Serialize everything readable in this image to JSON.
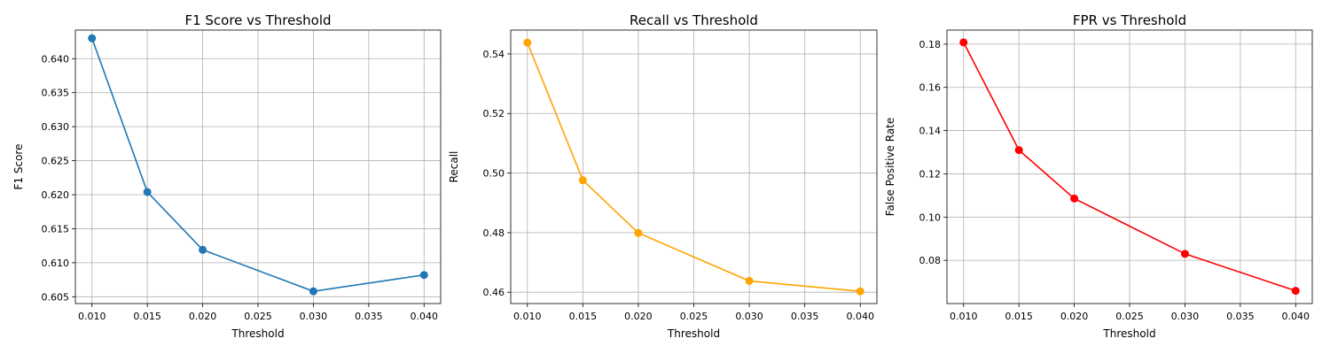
{
  "chart_data": [
    {
      "type": "line",
      "title": "F1 Score vs Threshold",
      "xlabel": "Threshold",
      "ylabel": "F1 Score",
      "grid": true,
      "xlim": [
        0.0085,
        0.0415
      ],
      "ylim": [
        0.604,
        0.6442
      ],
      "xticks": [
        "0.010",
        "0.015",
        "0.020",
        "0.025",
        "0.030",
        "0.035",
        "0.040"
      ],
      "yticks": [
        "0.605",
        "0.610",
        "0.615",
        "0.620",
        "0.625",
        "0.630",
        "0.635",
        "0.640"
      ],
      "color": "#1f77b4",
      "x": [
        0.01,
        0.015,
        0.02,
        0.03,
        0.04
      ],
      "y": [
        0.643,
        0.6204,
        0.6119,
        0.6058,
        0.6082
      ]
    },
    {
      "type": "line",
      "title": "Recall vs Threshold",
      "xlabel": "Threshold",
      "ylabel": "Recall",
      "grid": true,
      "xlim": [
        0.0085,
        0.0415
      ],
      "ylim": [
        0.4562,
        0.548
      ],
      "xticks": [
        "0.010",
        "0.015",
        "0.020",
        "0.025",
        "0.030",
        "0.035",
        "0.040"
      ],
      "yticks": [
        "0.46",
        "0.48",
        "0.50",
        "0.52",
        "0.54"
      ],
      "color": "#ffa500",
      "x": [
        0.01,
        0.015,
        0.02,
        0.03,
        0.04
      ],
      "y": [
        0.5438,
        0.4976,
        0.4799,
        0.4638,
        0.4603
      ]
    },
    {
      "type": "line",
      "title": "FPR vs Threshold",
      "xlabel": "Threshold",
      "ylabel": "False Positive Rate",
      "grid": true,
      "xlim": [
        0.0085,
        0.0415
      ],
      "ylim": [
        0.06,
        0.1865
      ],
      "xticks": [
        "0.010",
        "0.015",
        "0.020",
        "0.025",
        "0.030",
        "0.035",
        "0.040"
      ],
      "yticks": [
        "0.08",
        "0.10",
        "0.12",
        "0.14",
        "0.16",
        "0.18"
      ],
      "color": "#ff0000",
      "x": [
        0.01,
        0.015,
        0.02,
        0.03,
        0.04
      ],
      "y": [
        0.1808,
        0.131,
        0.1086,
        0.083,
        0.0659
      ]
    }
  ]
}
